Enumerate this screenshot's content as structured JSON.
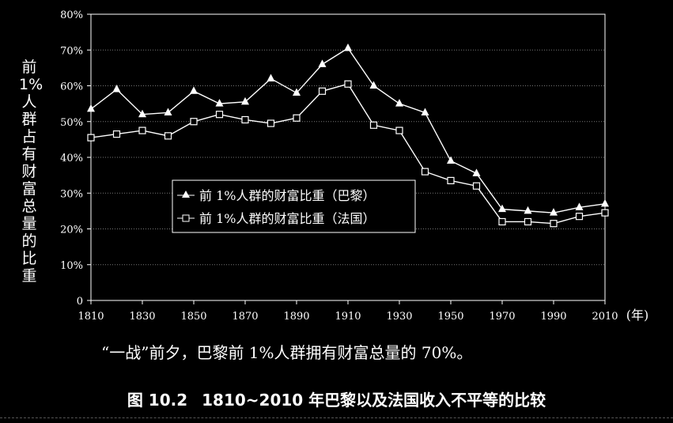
{
  "chart_data": {
    "type": "line",
    "ylabel": "前1%人群占有财富总量的比重",
    "xlabel": "(年)",
    "x": [
      1810,
      1820,
      1830,
      1840,
      1850,
      1860,
      1870,
      1880,
      1890,
      1900,
      1910,
      1920,
      1930,
      1940,
      1950,
      1960,
      1970,
      1980,
      1990,
      2000,
      2010
    ],
    "xticks": [
      "1810",
      "1830",
      "1850",
      "1870",
      "1890",
      "1910",
      "1930",
      "1950",
      "1970",
      "1990",
      "2010"
    ],
    "yticks": [
      "0",
      "10%",
      "20%",
      "30%",
      "40%",
      "50%",
      "60%",
      "70%",
      "80%"
    ],
    "ylim": [
      0,
      80
    ],
    "xlim": [
      1810,
      2010
    ],
    "grid": true,
    "legend_position": "center-left",
    "series": [
      {
        "name": "前 1%人群的财富比重（巴黎）",
        "marker": "filled-triangle",
        "values": [
          53.5,
          59,
          52,
          52.5,
          58.5,
          55,
          55.5,
          62,
          58,
          66,
          70.5,
          60,
          55,
          52.5,
          39,
          35.5,
          25.5,
          25,
          24.5,
          26,
          27
        ]
      },
      {
        "name": "前 1%人群的财富比重（法国）",
        "marker": "open-square",
        "values": [
          45.5,
          46.5,
          47.5,
          46,
          50,
          52,
          50.5,
          49.5,
          51,
          58.5,
          60.5,
          49,
          47.5,
          36,
          33.5,
          32,
          22,
          22,
          21.5,
          23.5,
          24.5
        ]
      }
    ]
  },
  "note": "“一战”前夕，巴黎前 1%人群拥有财富总量的 70%。",
  "caption": {
    "number": "图 10.2",
    "title": "1810~2010 年巴黎以及法国收入不平等的比较"
  }
}
